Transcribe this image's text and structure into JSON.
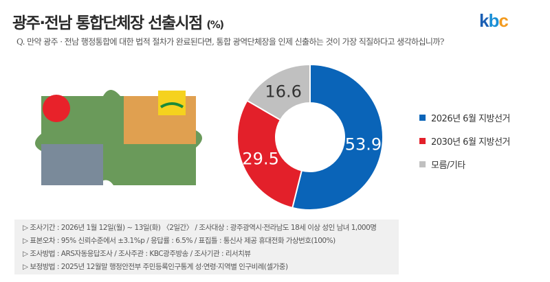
{
  "header": {
    "title": "광주·전남 통합단체장 선출시점",
    "unit": "(%)",
    "logo": "kbc"
  },
  "question": "Q. 만약 광주 · 전남 행정통합에 대한 법적 절차가 완료된다면, 통합 광역단체장을 인제 신출하는 것이 가장 직질하다고 생각하십니까?",
  "chart_data": {
    "type": "pie",
    "donut": true,
    "categories": [
      "2026년 6월 지방선거",
      "2030년 6월 지방선거",
      "모름/기타"
    ],
    "values": [
      53.9,
      29.5,
      16.6
    ],
    "colors": [
      "#0a64b8",
      "#e3202a",
      "#c0c0c0"
    ],
    "legend_position": "right"
  },
  "footer": [
    "▷ 조사기간 : 2026년 1월 12일(월) ~ 13일(화) 〈2일간〉 / 조사대상 : 광주광역시·전라남도 18세 이상 성인 남녀 1,000명",
    "▷ 표본오차 : 95% 신뢰수준에서 ±3.1%p / 응답률 : 6.5% / 표집틀 : 통신사 제공 휴대전화 가상번호(100%)",
    "▷ 조사방법 : ARS자동응답조사 / 조사주관 : KBC광주방송 / 조사기관 : 리서치뷰",
    "▷ 보정방법 : 2025년 12월말 행정안전부 주민등록인구통계 성·연령·지역별 인구비례(셀가중)"
  ]
}
